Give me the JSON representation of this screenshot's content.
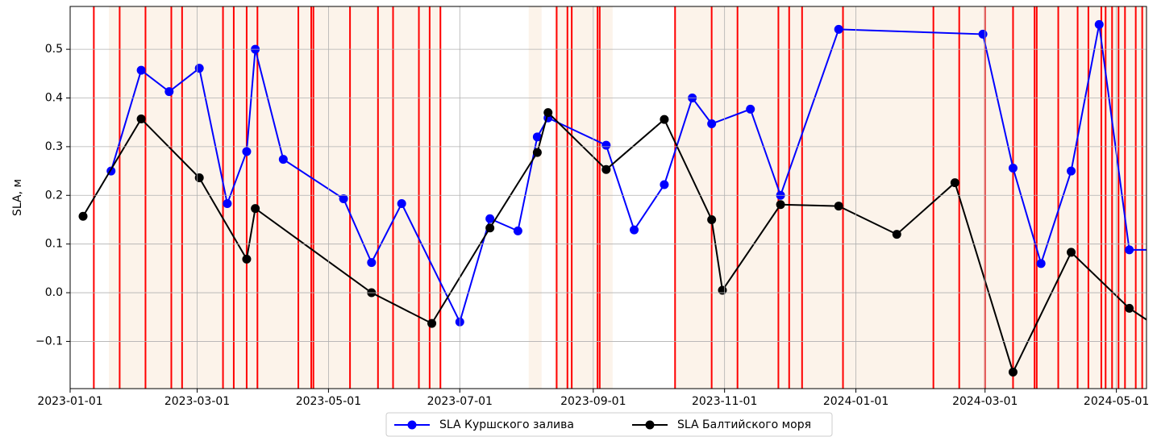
{
  "chart_data": {
    "type": "line",
    "ylabel": "SLA, м",
    "xlim": [
      "2023-01-01",
      "2024-05-15"
    ],
    "xticks": [
      "2023-01-01",
      "2023-03-01",
      "2023-05-01",
      "2023-07-01",
      "2023-09-01",
      "2023-11-01",
      "2024-01-01",
      "2024-03-01",
      "2024-05-01"
    ],
    "ylim": [
      -0.197,
      0.588
    ],
    "yticks": [
      {
        "value": -0.1,
        "label": "−0.1"
      },
      {
        "value": 0,
        "label": "0.0"
      },
      0.1,
      0.2,
      0.3,
      0.4,
      0.5
    ],
    "grid": true,
    "legend": "lower center",
    "series": [
      {
        "name": "SLA Куршского залива",
        "color": "#0000ff",
        "x": [
          "2023-01-20",
          "2023-02-03",
          "2023-02-16",
          "2023-03-02",
          "2023-03-15",
          "2023-03-24",
          "2023-03-28",
          "2023-04-10",
          "2023-05-08",
          "2023-05-21",
          "2023-06-04",
          "2023-07-01",
          "2023-07-15",
          "2023-07-28",
          "2023-08-06",
          "2023-08-11",
          "2023-09-07",
          "2023-09-20",
          "2023-10-04",
          "2023-10-17",
          "2023-10-26",
          "2023-11-13",
          "2023-11-27",
          "2023-12-24",
          "2024-02-29",
          "2024-03-14",
          "2024-03-27",
          "2024-04-10",
          "2024-04-23",
          "2024-05-07",
          "2024-05-20"
        ],
        "values": [
          0.25,
          0.457,
          0.413,
          0.461,
          0.183,
          0.29,
          0.5,
          0.274,
          0.193,
          0.062,
          0.183,
          -0.06,
          0.152,
          0.127,
          0.32,
          0.359,
          0.303,
          0.129,
          0.222,
          0.4,
          0.347,
          0.377,
          0.2,
          0.541,
          0.531,
          0.256,
          0.06,
          0.25,
          0.551,
          0.088,
          0.088
        ]
      },
      {
        "name": "SLA Балтийского моря",
        "color": "#000000",
        "x": [
          "2023-01-07",
          "2023-02-03",
          "2023-03-02",
          "2023-03-24",
          "2023-03-28",
          "2023-05-21",
          "2023-06-18",
          "2023-07-15",
          "2023-08-06",
          "2023-08-11",
          "2023-09-07",
          "2023-10-04",
          "2023-10-26",
          "2023-10-31",
          "2023-11-27",
          "2023-12-24",
          "2024-01-20",
          "2024-02-16",
          "2024-03-14",
          "2024-04-10",
          "2024-05-07",
          "2024-05-20"
        ],
        "values": [
          0.157,
          0.357,
          0.236,
          0.069,
          0.173,
          0,
          -0.063,
          0.133,
          0.288,
          0.37,
          0.253,
          0.356,
          0.15,
          0.005,
          0.181,
          0.178,
          0.12,
          0.226,
          -0.163,
          0.083,
          -0.032,
          -0.07
        ]
      }
    ],
    "vlines": {
      "color": "#ff0000",
      "x": [
        "2023-01-12",
        "2023-01-24",
        "2023-02-05",
        "2023-02-17",
        "2023-02-22",
        "2023-03-13",
        "2023-03-18",
        "2023-03-24",
        "2023-03-29",
        "2023-04-17",
        "2023-04-23",
        "2023-04-24",
        "2023-05-11",
        "2023-05-24",
        "2023-05-31",
        "2023-06-12",
        "2023-06-17",
        "2023-06-22",
        "2023-08-15",
        "2023-08-20",
        "2023-08-22",
        "2023-09-03",
        "2023-09-04",
        "2023-10-09",
        "2023-10-26",
        "2023-11-07",
        "2023-11-26",
        "2023-12-01",
        "2023-12-07",
        "2023-12-26",
        "2024-02-06",
        "2024-02-18",
        "2024-03-01",
        "2024-03-14",
        "2024-03-24",
        "2024-03-25",
        "2024-04-04",
        "2024-04-13",
        "2024-04-18",
        "2024-04-24",
        "2024-04-26",
        "2024-04-29",
        "2024-05-02",
        "2024-05-05",
        "2024-05-10",
        "2024-05-13"
      ]
    },
    "spans": {
      "color": "#fcf3ea",
      "ranges": [
        {
          "start": "2023-01-19",
          "end": "2023-06-22"
        },
        {
          "start": "2023-08-02",
          "end": "2023-08-08"
        },
        {
          "start": "2023-08-14",
          "end": "2023-09-10"
        },
        {
          "start": "2023-10-09",
          "end": "2024-05-15"
        }
      ]
    }
  }
}
